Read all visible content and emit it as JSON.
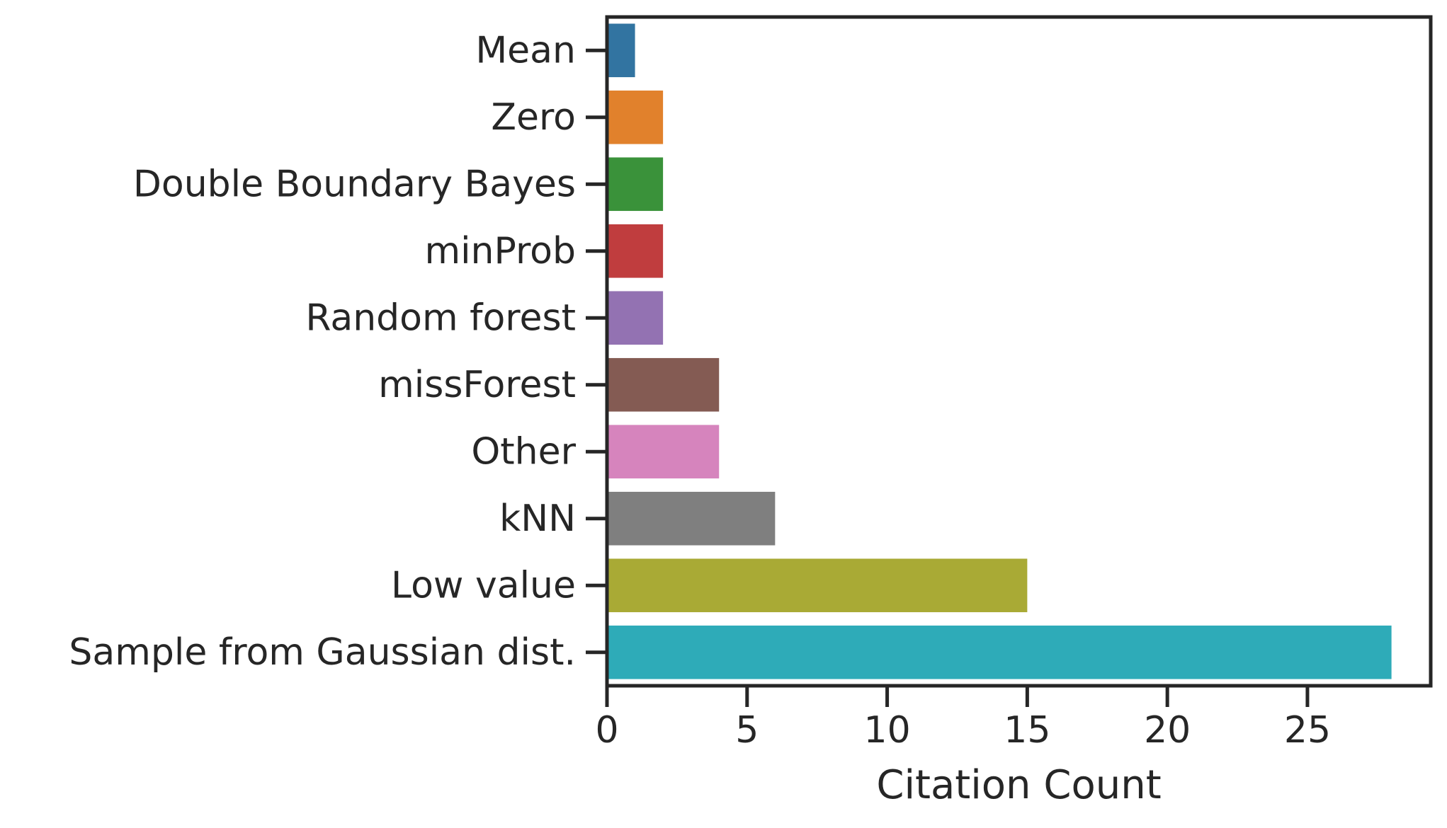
{
  "chart_data": {
    "type": "bar",
    "orientation": "horizontal",
    "categories": [
      "Mean",
      "Zero",
      "Double Boundary Bayes",
      "minProb",
      "Random forest",
      "missForest",
      "Other",
      "kNN",
      "Low value",
      "Sample from Gaussian dist."
    ],
    "values": [
      1,
      2,
      2,
      2,
      2,
      4,
      4,
      6,
      15,
      28
    ],
    "colors": [
      "#3274a1",
      "#e1812c",
      "#3a923a",
      "#c03d3e",
      "#9372b2",
      "#845b53",
      "#d684bd",
      "#7f7f7f",
      "#a9aa35",
      "#2eabb8"
    ],
    "title": "",
    "xlabel": "Citation Count",
    "ylabel": "",
    "xlim": [
      0,
      29.4
    ],
    "xticks": [
      0,
      5,
      10,
      15,
      20,
      25
    ],
    "grid": false,
    "legend": "none"
  }
}
